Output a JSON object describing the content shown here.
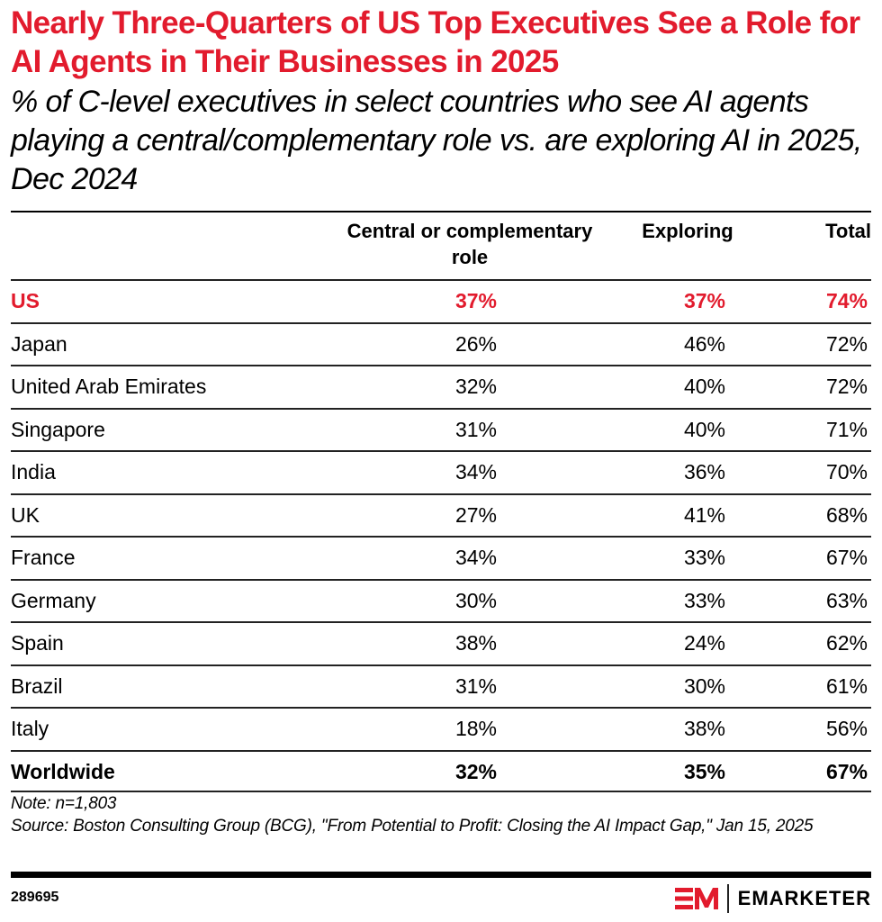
{
  "header": {
    "title": "Nearly Three-Quarters of US Top Executives See a Role for AI Agents in Their Businesses in 2025",
    "subtitle": "% of C-level executives in select countries who see AI agents playing a central/complementary role vs. are exploring AI in 2025, Dec 2024"
  },
  "colors": {
    "accent": "#e21b2d",
    "text": "#000000"
  },
  "chart_data": {
    "type": "table",
    "title": "Nearly Three-Quarters of US Top Executives See a Role for AI Agents in Their Businesses in 2025",
    "subtitle": "% of C-level executives in select countries who see AI agents playing a central/complementary role vs. are exploring AI in 2025, Dec 2024",
    "columns": [
      "",
      "Central or complementary role",
      "Exploring",
      "Total"
    ],
    "rows": [
      {
        "label": "US",
        "central": "37%",
        "exploring": "37%",
        "total": "74%",
        "highlight": true
      },
      {
        "label": "Japan",
        "central": "26%",
        "exploring": "46%",
        "total": "72%"
      },
      {
        "label": "United Arab Emirates",
        "central": "32%",
        "exploring": "40%",
        "total": "72%"
      },
      {
        "label": "Singapore",
        "central": "31%",
        "exploring": "40%",
        "total": "71%"
      },
      {
        "label": "India",
        "central": "34%",
        "exploring": "36%",
        "total": "70%"
      },
      {
        "label": "UK",
        "central": "27%",
        "exploring": "41%",
        "total": "68%"
      },
      {
        "label": "France",
        "central": "34%",
        "exploring": "33%",
        "total": "67%"
      },
      {
        "label": "Germany",
        "central": "30%",
        "exploring": "33%",
        "total": "63%"
      },
      {
        "label": "Spain",
        "central": "38%",
        "exploring": "24%",
        "total": "62%"
      },
      {
        "label": "Brazil",
        "central": "31%",
        "exploring": "30%",
        "total": "61%"
      },
      {
        "label": "Italy",
        "central": "18%",
        "exploring": "38%",
        "total": "56%"
      },
      {
        "label": "Worldwide",
        "central": "32%",
        "exploring": "35%",
        "total": "67%",
        "bold": true
      }
    ],
    "series": [
      {
        "name": "Central or complementary role",
        "values": [
          37,
          26,
          32,
          31,
          34,
          27,
          34,
          30,
          38,
          31,
          18,
          32
        ]
      },
      {
        "name": "Exploring",
        "values": [
          37,
          46,
          40,
          40,
          36,
          41,
          33,
          33,
          24,
          30,
          38,
          35
        ]
      },
      {
        "name": "Total",
        "values": [
          74,
          72,
          72,
          71,
          70,
          68,
          67,
          63,
          62,
          61,
          56,
          67
        ]
      }
    ],
    "categories": [
      "US",
      "Japan",
      "United Arab Emirates",
      "Singapore",
      "India",
      "UK",
      "France",
      "Germany",
      "Spain",
      "Brazil",
      "Italy",
      "Worldwide"
    ]
  },
  "footer": {
    "note": "Note: n=1,803",
    "source": "Source: Boston Consulting Group (BCG), \"From Potential to Profit: Closing the AI Impact Gap,\" Jan 15, 2025",
    "chart_id": "289695",
    "brand": "EMARKETER",
    "brand_icon": "em-logo-icon"
  }
}
